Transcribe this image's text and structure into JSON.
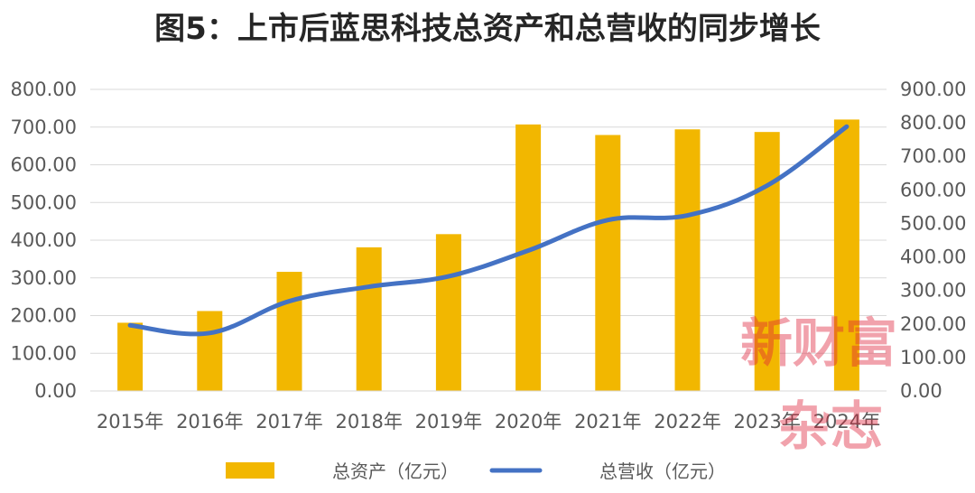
{
  "colors": {
    "bar": "#f2b700",
    "line": "#4472c4",
    "grid": "#d9d9d9",
    "text": "#595959",
    "watermark": "#e0233b"
  },
  "watermark": {
    "line1": "新财富",
    "line2": "杂志"
  },
  "chart_data": {
    "type": "bar",
    "title": "图5：上市后蓝思科技总资产和总营收的同步增长",
    "categories": [
      "2015年",
      "2016年",
      "2017年",
      "2018年",
      "2019年",
      "2020年",
      "2021年",
      "2022年",
      "2023年",
      "2024年"
    ],
    "series": [
      {
        "name": "总资产（亿元）",
        "type": "bar",
        "axis": "left",
        "values": [
          181,
          212,
          316,
          381,
          416,
          707,
          679,
          694,
          687,
          720
        ]
      },
      {
        "name": "总营收（亿元）",
        "type": "line",
        "axis": "right",
        "values": [
          196,
          173,
          268,
          311,
          342,
          419,
          510,
          524,
          613,
          789
        ]
      }
    ],
    "y_left": {
      "ylim": [
        0,
        800
      ],
      "ticks": [
        "0.00",
        "100.00",
        "200.00",
        "300.00",
        "400.00",
        "500.00",
        "600.00",
        "700.00",
        "800.00"
      ]
    },
    "y_right": {
      "ylim": [
        0,
        900
      ],
      "ticks": [
        "0.00",
        "100.00",
        "200.00",
        "300.00",
        "400.00",
        "500.00",
        "600.00",
        "700.00",
        "800.00",
        "900.00"
      ]
    },
    "grid": true,
    "legend_position": "bottom"
  }
}
